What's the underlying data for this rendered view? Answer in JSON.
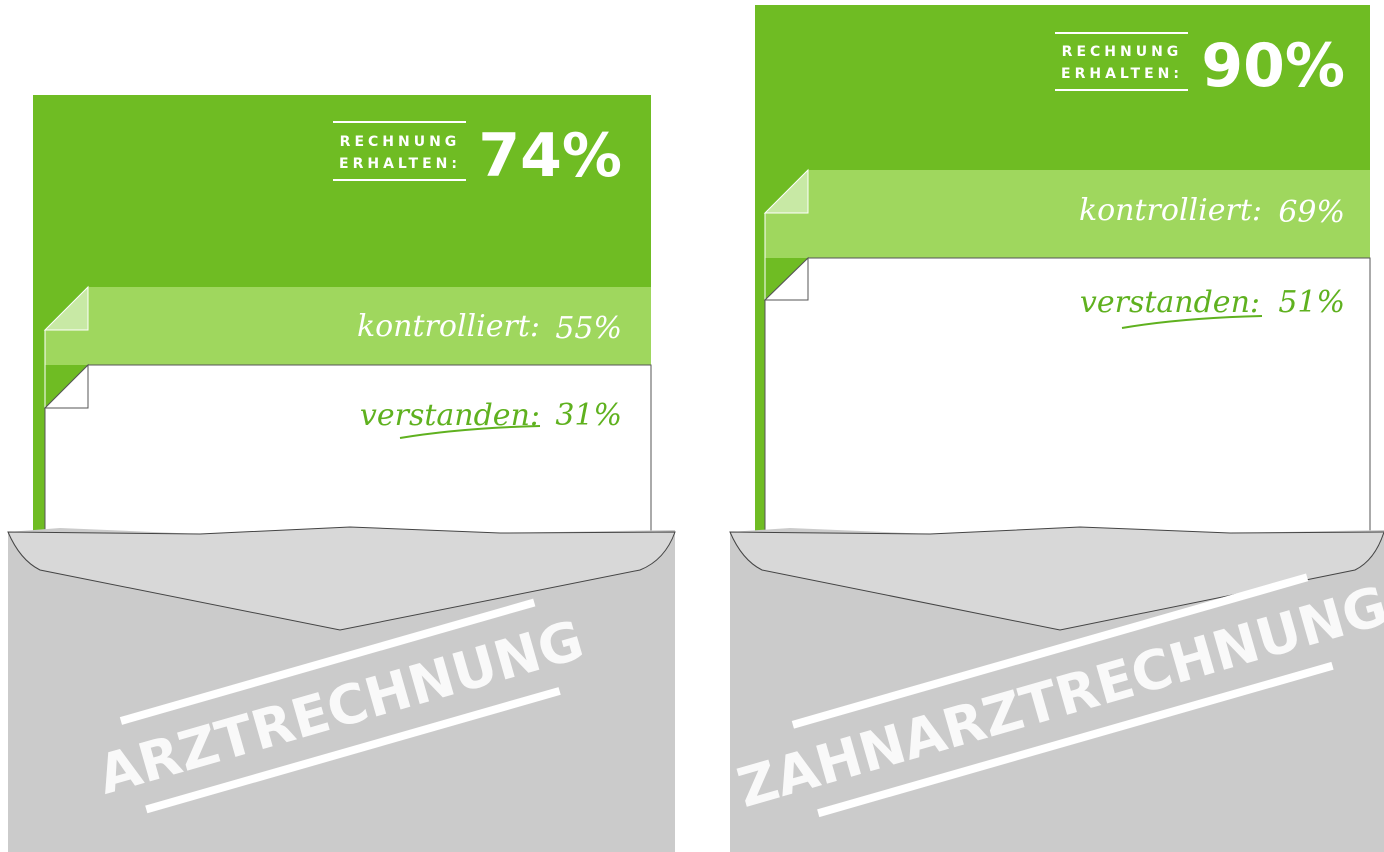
{
  "panels": [
    {
      "envelope_label": "ARZTRECHNUNG",
      "received": {
        "label": [
          "RECHNUNG",
          "ERHALTEN:"
        ],
        "value": "74%"
      },
      "checked": {
        "label": "kontrolliert:",
        "value": "55%"
      },
      "understood": {
        "label": "verstanden:",
        "value": "31%"
      }
    },
    {
      "envelope_label": "ZAHNARZTRECHNUNG",
      "received": {
        "label": [
          "RECHNUNG",
          "ERHALTEN:"
        ],
        "value": "90%"
      },
      "checked": {
        "label": "kontrolliert:",
        "value": "69%"
      },
      "understood": {
        "label": "verstanden:",
        "value": "51%"
      }
    }
  ]
}
